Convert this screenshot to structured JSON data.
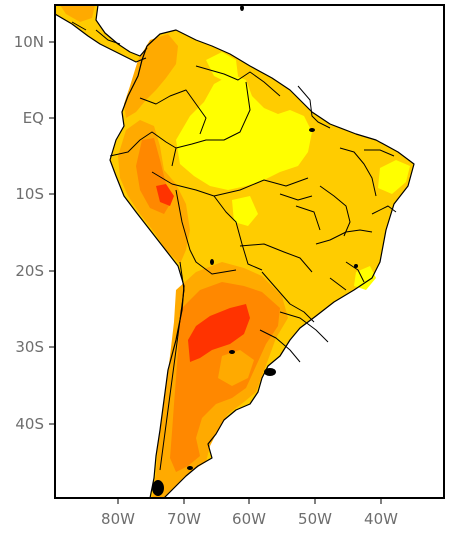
{
  "map": {
    "lat_ticks": [
      "10N",
      "EQ",
      "10S",
      "20S",
      "30S",
      "40S"
    ],
    "lon_ticks": [
      "80W",
      "70W",
      "60W",
      "50W",
      "40W"
    ],
    "colors": {
      "ocean": "#ffffff",
      "level_1": "#ffff00",
      "level_2": "#ffcc00",
      "level_3": "#ffaa00",
      "level_4": "#ff8800",
      "level_5": "#ff3300",
      "frame": "#000000"
    }
  }
}
